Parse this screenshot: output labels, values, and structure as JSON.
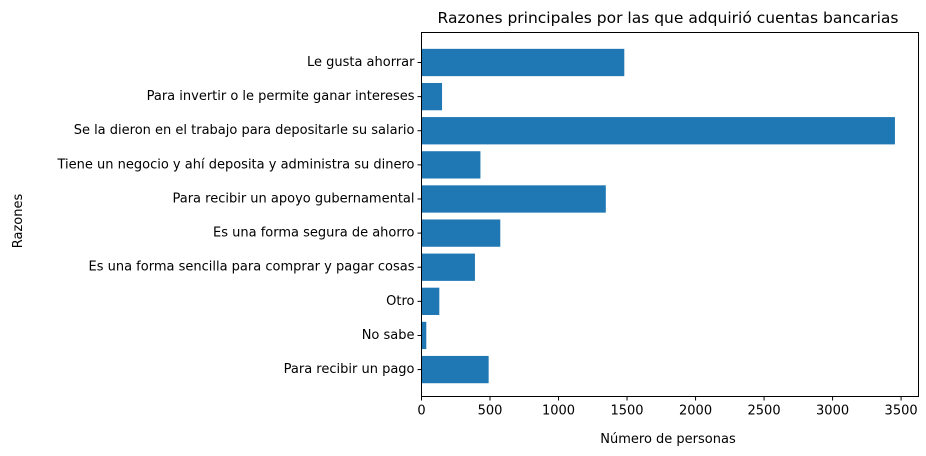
{
  "chart_data": {
    "type": "bar",
    "orientation": "horizontal",
    "title": "Razones principales por las que adquirió cuentas bancarias",
    "xlabel": "Número de personas",
    "ylabel": "Razones",
    "categories": [
      "Le gusta ahorrar",
      "Para invertir o le permite ganar intereses",
      "Se la dieron en el trabajo para depositarle su salario",
      "Tiene un negocio y ahí deposita y administra su dinero",
      "Para recibir un apoyo gubernamental",
      "Es una forma segura de ahorro",
      "Es una forma sencilla para comprar y pagar cosas",
      "Otro",
      "No sabe",
      "Para recibir un pago"
    ],
    "values": [
      1480,
      150,
      3455,
      430,
      1345,
      575,
      390,
      130,
      35,
      490
    ],
    "xlim": [
      0,
      3627
    ],
    "xticks": [
      0,
      500,
      1000,
      1500,
      2000,
      2500,
      3000,
      3500
    ],
    "grid": false,
    "colors": {
      "bar": "#1f77b4"
    }
  }
}
